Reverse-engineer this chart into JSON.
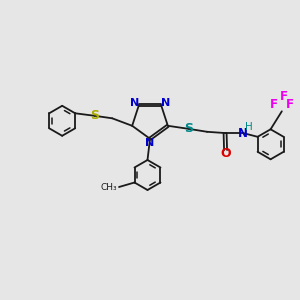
{
  "bg_color": "#e6e6e6",
  "bond_color": "#1a1a1a",
  "N_color": "#0000cc",
  "S_left_color": "#aaaa00",
  "S_right_color": "#008888",
  "O_color": "#dd0000",
  "F_color": "#ee00ee",
  "H_color": "#008888",
  "lw": 1.3,
  "figsize": [
    3.0,
    3.0
  ],
  "dpi": 100,
  "xlim": [
    0,
    12
  ],
  "ylim": [
    0,
    12
  ]
}
